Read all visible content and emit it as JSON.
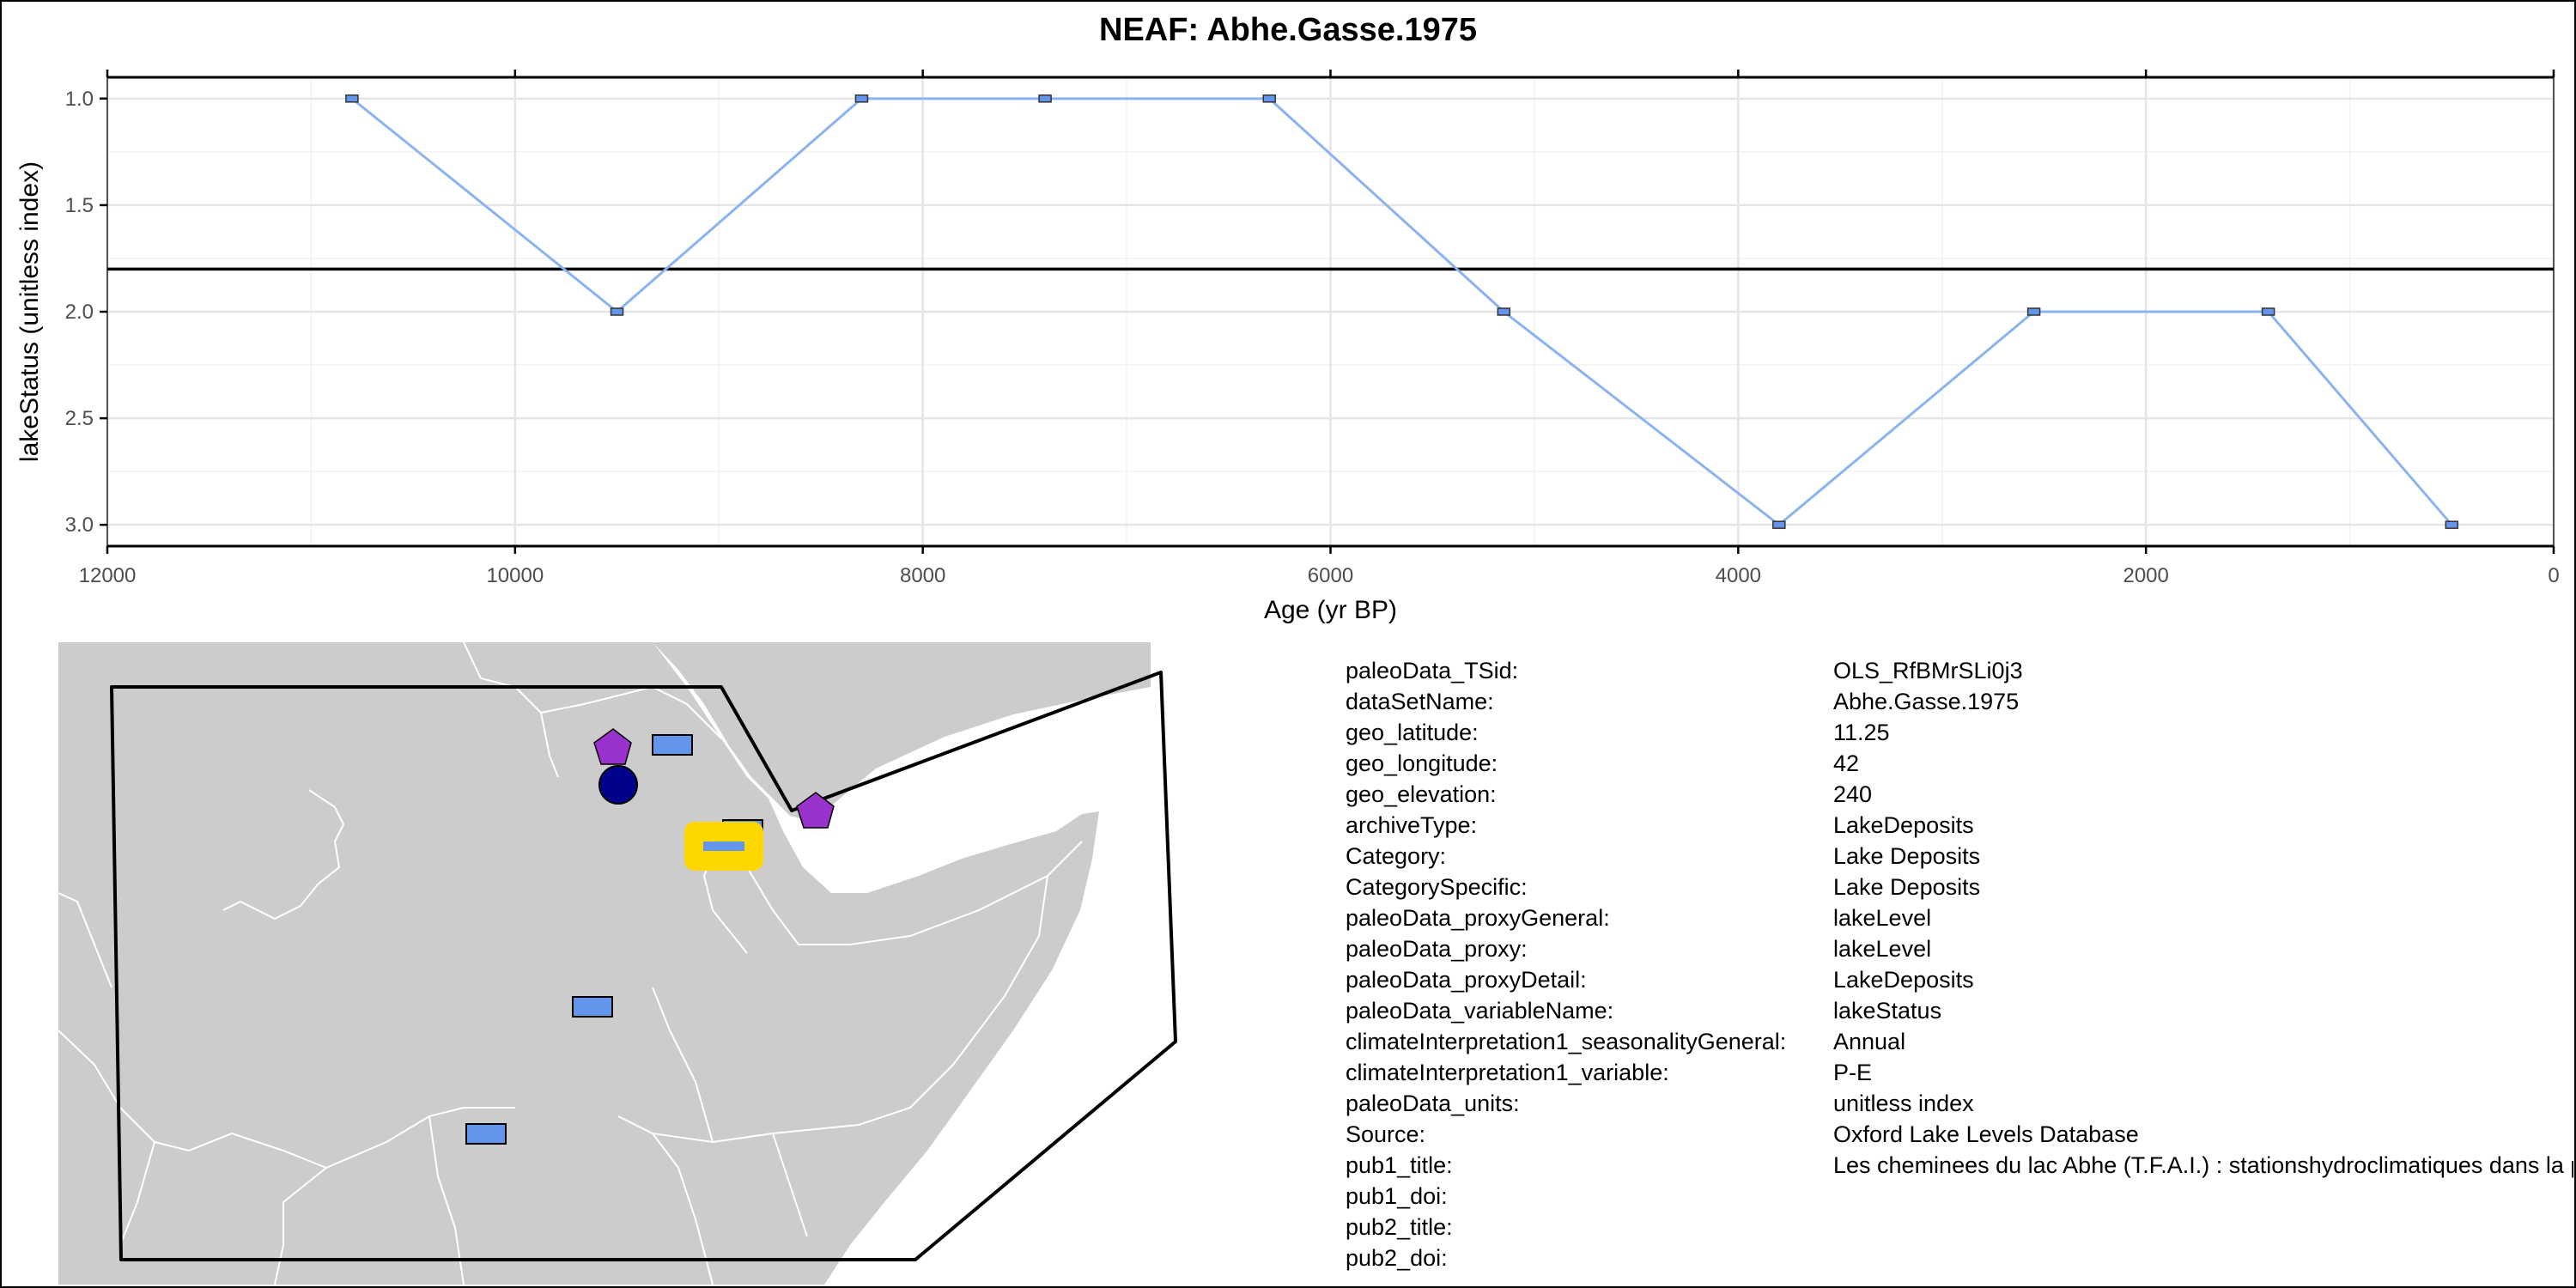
{
  "chart_data": {
    "type": "line",
    "title": "NEAF: Abhe.Gasse.1975",
    "xlabel": "Age (yr BP)",
    "ylabel": "lakeStatus (unitless index)",
    "xlim": [
      12000,
      0
    ],
    "ylim": [
      3.1,
      0.9
    ],
    "x_reversed": true,
    "y_reversed": true,
    "x_ticks": [
      12000,
      10000,
      8000,
      6000,
      4000,
      2000,
      0
    ],
    "x_tick_labels": [
      "12000",
      "10000",
      "8000",
      "6000",
      "4000",
      "2000",
      "0"
    ],
    "y_ticks": [
      1.0,
      1.5,
      2.0,
      2.5,
      3.0
    ],
    "y_tick_labels": [
      "1.0",
      "1.5",
      "2.0",
      "2.5",
      "3.0"
    ],
    "reference_line_y": 1.8,
    "grid": true,
    "series": [
      {
        "x": [
          10800,
          9500,
          8300,
          7400,
          6300,
          5150,
          3800,
          2550,
          1400,
          500
        ],
        "y": [
          1,
          2,
          1,
          1,
          1,
          2,
          3,
          2,
          2,
          3
        ],
        "color": "#8ab4f0"
      }
    ]
  },
  "map": {
    "land_color": "#cccccc",
    "sea_color": "#ffffff",
    "markers": [
      {
        "shape": "pentagon",
        "color": "#9932cc",
        "label": "site-pentagon-1"
      },
      {
        "shape": "circle",
        "color": "#00008b",
        "label": "site-circle"
      },
      {
        "shape": "rectangle",
        "color": "#6495ed",
        "label": "site-rect-1"
      },
      {
        "shape": "rectangle",
        "color": "#6495ed",
        "label": "site-rect-2"
      },
      {
        "shape": "pentagon",
        "color": "#9932cc",
        "label": "site-pentagon-2"
      },
      {
        "shape": "rectangle-highlighted",
        "color": "#6495ed",
        "highlight": "#ffd700",
        "label": "this-site"
      },
      {
        "shape": "rectangle",
        "color": "#6495ed",
        "label": "site-rect-3"
      },
      {
        "shape": "rectangle",
        "color": "#6495ed",
        "label": "site-rect-4"
      }
    ]
  },
  "metadata": [
    {
      "key": "paleoData_TSid:",
      "value": "OLS_RfBMrSLi0j3"
    },
    {
      "key": "dataSetName:",
      "value": "Abhe.Gasse.1975"
    },
    {
      "key": "geo_latitude:",
      "value": "11.25"
    },
    {
      "key": "geo_longitude:",
      "value": "42"
    },
    {
      "key": "geo_elevation:",
      "value": "240"
    },
    {
      "key": "archiveType:",
      "value": "LakeDeposits"
    },
    {
      "key": "Category:",
      "value": "Lake Deposits"
    },
    {
      "key": "CategorySpecific:",
      "value": "Lake Deposits"
    },
    {
      "key": "paleoData_proxyGeneral:",
      "value": "lakeLevel"
    },
    {
      "key": "paleoData_proxy:",
      "value": "lakeLevel"
    },
    {
      "key": "paleoData_proxyDetail:",
      "value": "LakeDeposits"
    },
    {
      "key": "paleoData_variableName:",
      "value": "lakeStatus"
    },
    {
      "key": "climateInterpretation1_seasonalityGeneral:",
      "value": "Annual"
    },
    {
      "key": "climateInterpretation1_variable:",
      "value": "P-E"
    },
    {
      "key": "paleoData_units:",
      "value": "unitless index"
    },
    {
      "key": "Source:",
      "value": "Oxford Lake Levels Database"
    },
    {
      "key": "pub1_title:",
      "value": "Les cheminees du lac Abhe (T.F.A.I.) : stationshydroclimatiques dans la plaine du Gobaad"
    },
    {
      "key": "pub1_doi:",
      "value": ""
    },
    {
      "key": "pub2_title:",
      "value": ""
    },
    {
      "key": "pub2_doi:",
      "value": ""
    }
  ]
}
